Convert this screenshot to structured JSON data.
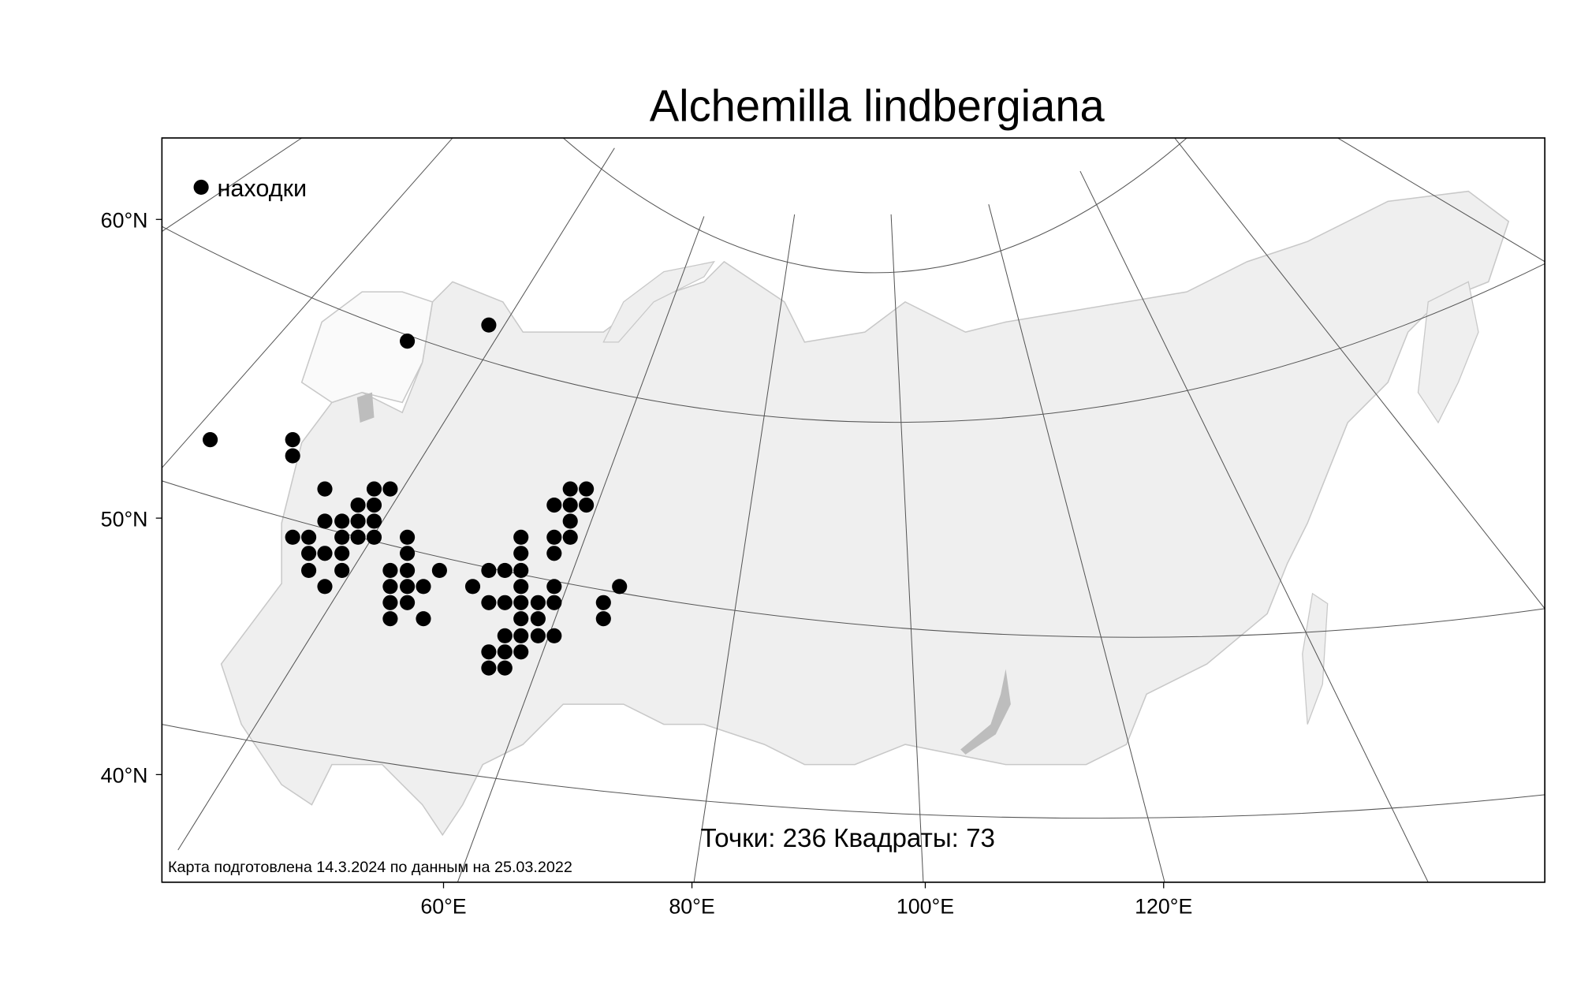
{
  "title": "Alchemilla lindbergiana",
  "legend": {
    "label": "находки",
    "marker_color": "#000000"
  },
  "stats": "Точки: 236 Квадраты: 73",
  "credit": "Карта подготовлена 14.3.2024 по данным на 25.03.2022",
  "axes": {
    "lat_labels": [
      "60°N",
      "50°N",
      "40°N"
    ],
    "lon_labels": [
      "60°E",
      "80°E",
      "100°E",
      "120°E"
    ]
  },
  "colors": {
    "land": "#efefef",
    "land_border": "#c8c8c8",
    "lakes": "#bdbdbd",
    "points": "#000000",
    "graticule": "#555555"
  }
}
